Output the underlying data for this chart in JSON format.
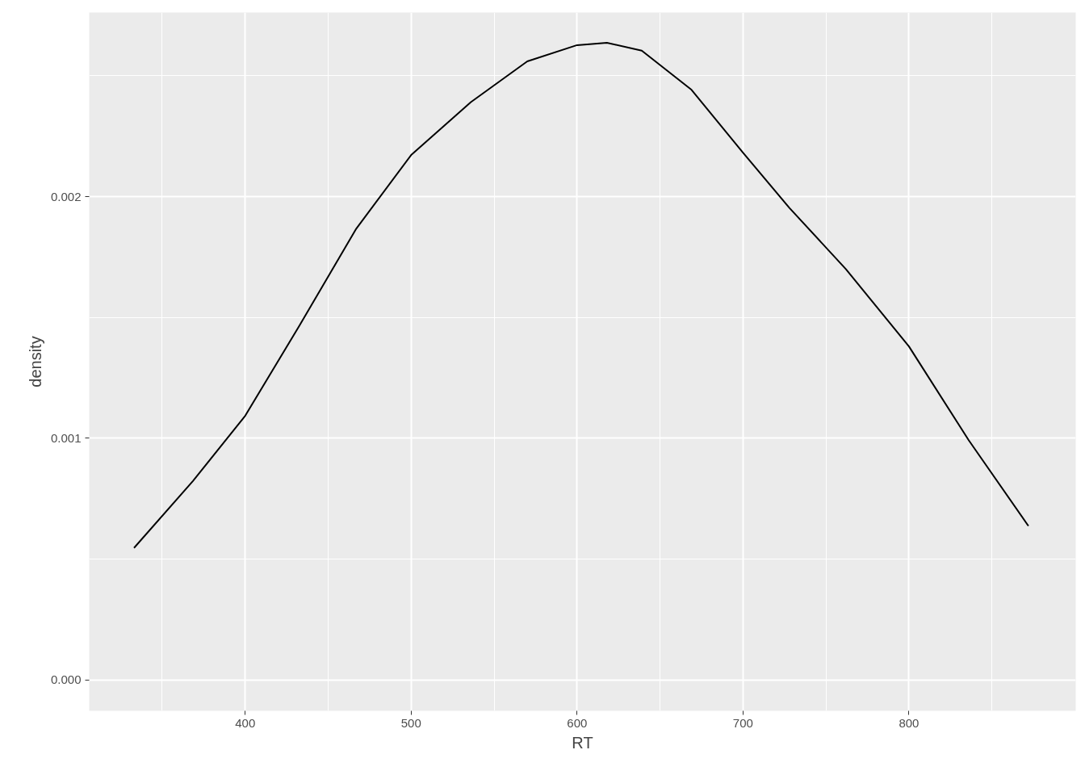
{
  "chart_data": {
    "type": "line",
    "xlabel": "RT",
    "ylabel": "density",
    "series": [
      {
        "color": "#000000",
        "x": [
          333,
          368.5,
          400,
          432.5,
          467,
          500,
          536,
          570,
          600,
          618,
          639,
          669,
          700,
          728,
          762,
          800,
          836,
          872
        ],
        "values": [
          0.000546,
          0.000823,
          0.001093,
          0.001464,
          0.001868,
          0.002172,
          0.002391,
          0.00256,
          0.002627,
          0.002637,
          0.002604,
          0.002442,
          0.002182,
          0.001953,
          0.0017,
          0.00138,
          0.000992,
          0.000637
        ]
      }
    ],
    "xlim": [
      306,
      900.5
    ],
    "ylim": [
      -0.000128,
      0.002762
    ],
    "xticks": [
      400,
      500,
      600,
      700,
      800
    ],
    "yticks": [
      {
        "value": 0,
        "label": "0.000"
      },
      {
        "value": 0.001,
        "label": "0.001"
      },
      {
        "value": 0.002,
        "label": "0.002"
      }
    ],
    "grid": true,
    "marker": "none",
    "line_style": "solid"
  }
}
